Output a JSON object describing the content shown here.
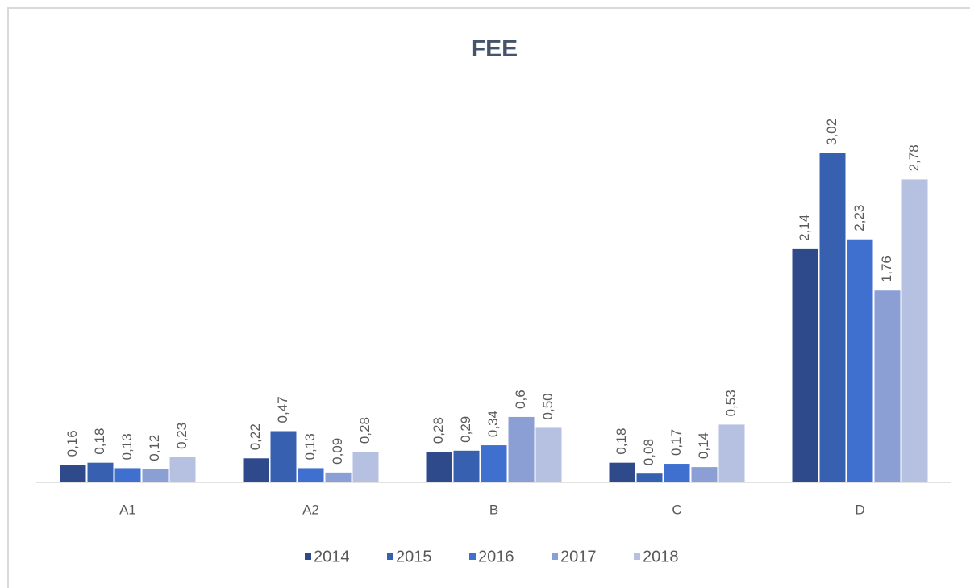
{
  "chart_data": {
    "type": "bar",
    "title": "FEE",
    "categories": [
      "A1",
      "A2",
      "B",
      "C",
      "D"
    ],
    "series": [
      {
        "name": "2014",
        "color": "#2f4a8b",
        "values": [
          0.16,
          0.22,
          0.28,
          0.18,
          2.14
        ],
        "value_labels": [
          "0,16",
          "0,22",
          "0,28",
          "0,18",
          "2,14"
        ]
      },
      {
        "name": "2015",
        "color": "#3760b0",
        "values": [
          0.18,
          0.47,
          0.29,
          0.08,
          3.02
        ],
        "value_labels": [
          "0,18",
          "0,47",
          "0,29",
          "0,08",
          "3,02"
        ]
      },
      {
        "name": "2016",
        "color": "#3f6fcf",
        "values": [
          0.13,
          0.13,
          0.34,
          0.17,
          2.23
        ],
        "value_labels": [
          "0,13",
          "0,13",
          "0,34",
          "0,17",
          "2,23"
        ]
      },
      {
        "name": "2017",
        "color": "#8c9fd4",
        "values": [
          0.12,
          0.09,
          0.6,
          0.14,
          1.76
        ],
        "value_labels": [
          "0,12",
          "0,09",
          "0,6",
          "0,14",
          "1,76"
        ]
      },
      {
        "name": "2018",
        "color": "#b6c1e2",
        "values": [
          0.23,
          0.28,
          0.5,
          0.53,
          2.78
        ],
        "value_labels": [
          "0,23",
          "0,28",
          "0,50",
          "0,53",
          "2,78"
        ]
      }
    ],
    "legend": "bottom"
  }
}
